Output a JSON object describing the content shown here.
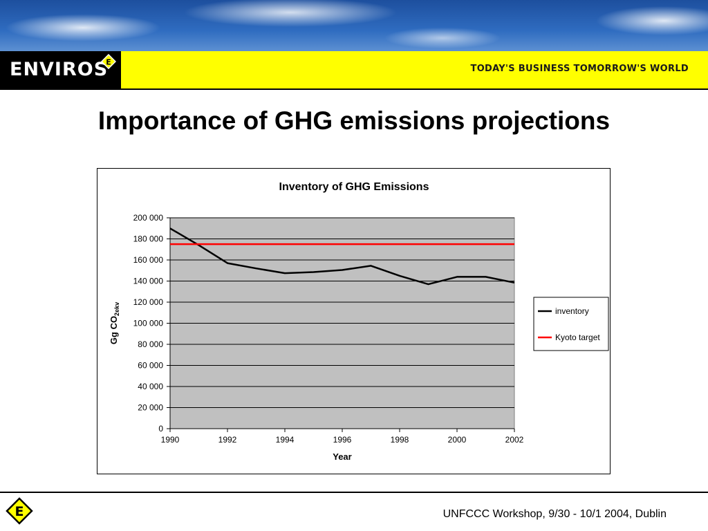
{
  "header": {
    "logo_text": "ENVIROS",
    "logo_badge": "E",
    "tagline": "TODAY'S BUSINESS TOMORROW'S WORLD",
    "brand_color": "#ffff00"
  },
  "slide": {
    "title": "Importance of GHG emissions projections"
  },
  "chart_data": {
    "type": "line",
    "title": "Inventory of GHG Emissions",
    "xlabel": "Year",
    "ylabel": "Gg CO",
    "ylabel_sub": "2ekv",
    "xlim": [
      1990,
      2002
    ],
    "ylim": [
      0,
      200000
    ],
    "x_ticks": [
      1990,
      1992,
      1994,
      1996,
      1998,
      2000,
      2002
    ],
    "y_ticks": [
      0,
      20000,
      40000,
      60000,
      80000,
      100000,
      120000,
      140000,
      160000,
      180000,
      200000
    ],
    "y_tick_labels": [
      "0",
      "20 000",
      "40 000",
      "60 000",
      "80 000",
      "100 000",
      "120 000",
      "140 000",
      "160 000",
      "180 000",
      "200 000"
    ],
    "grid": true,
    "plot_background": "#c0c0c0",
    "legend": "right",
    "series": [
      {
        "name": "inventory",
        "color": "#000000",
        "x": [
          1990,
          1991,
          1992,
          1993,
          1994,
          1995,
          1996,
          1997,
          1998,
          1999,
          2000,
          2001,
          2002
        ],
        "values": [
          190000,
          174000,
          157000,
          152000,
          147500,
          148500,
          150500,
          154500,
          145000,
          137000,
          144000,
          144000,
          138500
        ]
      },
      {
        "name": "Kyoto target",
        "color": "#ff0000",
        "x": [
          1990,
          2002
        ],
        "values": [
          175000,
          175000
        ]
      }
    ]
  },
  "footer": {
    "text": "UNFCCC Workshop, 9/30 - 10/1 2004, Dublin"
  }
}
